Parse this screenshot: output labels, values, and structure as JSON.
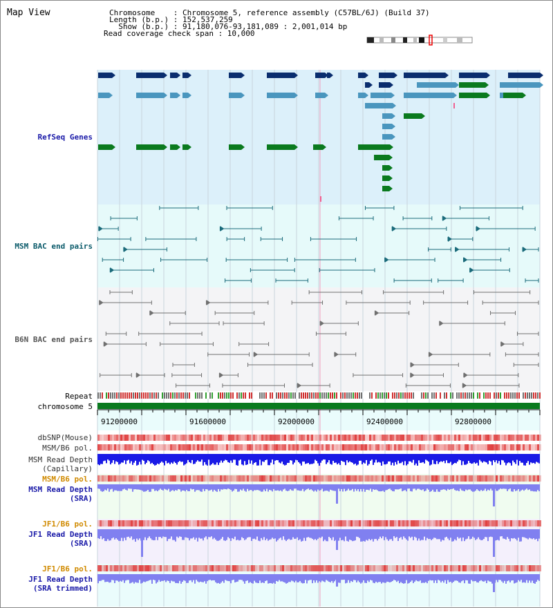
{
  "title": "Map View",
  "header": {
    "chromosome_line": "Chromosome    : Chromosome 5, reference assembly (C57BL/6J) (Build 37)",
    "length_line": "Length (b.p.) : 152,537,259",
    "show_line": "  Show (b.p.) : 91,180,076-93,181,089 : 2,001,014 bp",
    "coverage_line": "Read coverage check span : 10,000"
  },
  "tracks": {
    "refseq": "RefSeq Genes",
    "msm_bac": "MSM BAC end pairs",
    "b6n_bac": "B6N BAC end pairs",
    "repeat": "Repeat",
    "chromosome": "chromosome 5",
    "dbsnp": "dbSNP(Mouse)",
    "msm_b6_pol_1": "MSM/B6 pol.",
    "msm_depth_cap_1": "MSM Read Depth",
    "msm_depth_cap_2": "(Capillary)",
    "msm_b6_pol_2": "MSM/B6 pol.",
    "msm_depth_sra_1": "MSM Read Depth",
    "msm_depth_sra_2": "(SRA)",
    "jf1_b6_pol_1": "JF1/B6 pol.",
    "jf1_depth_sra_1": "JF1 Read Depth",
    "jf1_depth_sra_2": "(SRA)",
    "jf1_b6_pol_2": "JF1/B6 pol.",
    "jf1_depth_trim_1": "JF1 Read Depth",
    "jf1_depth_trim_2": "(SRA trimmed)"
  },
  "axis": {
    "ticks": [
      "91200000",
      "91600000",
      "92000000",
      "92400000",
      "92800000"
    ]
  },
  "colors": {
    "refseq_bg": "#dcf0fa",
    "bac_bg": "#e6fafa",
    "gene_dark": "#0a2d6e",
    "gene_mid": "#4a96be",
    "gene_green": "#0a7a1e",
    "bac_teal": "#1a6a7a",
    "bac_gray": "#707070",
    "chromosome_bar": "#0a7a1e",
    "depth_blue": "#1a1ae6",
    "depth_light": "#8080f0",
    "pol_red": "#e04040"
  }
}
